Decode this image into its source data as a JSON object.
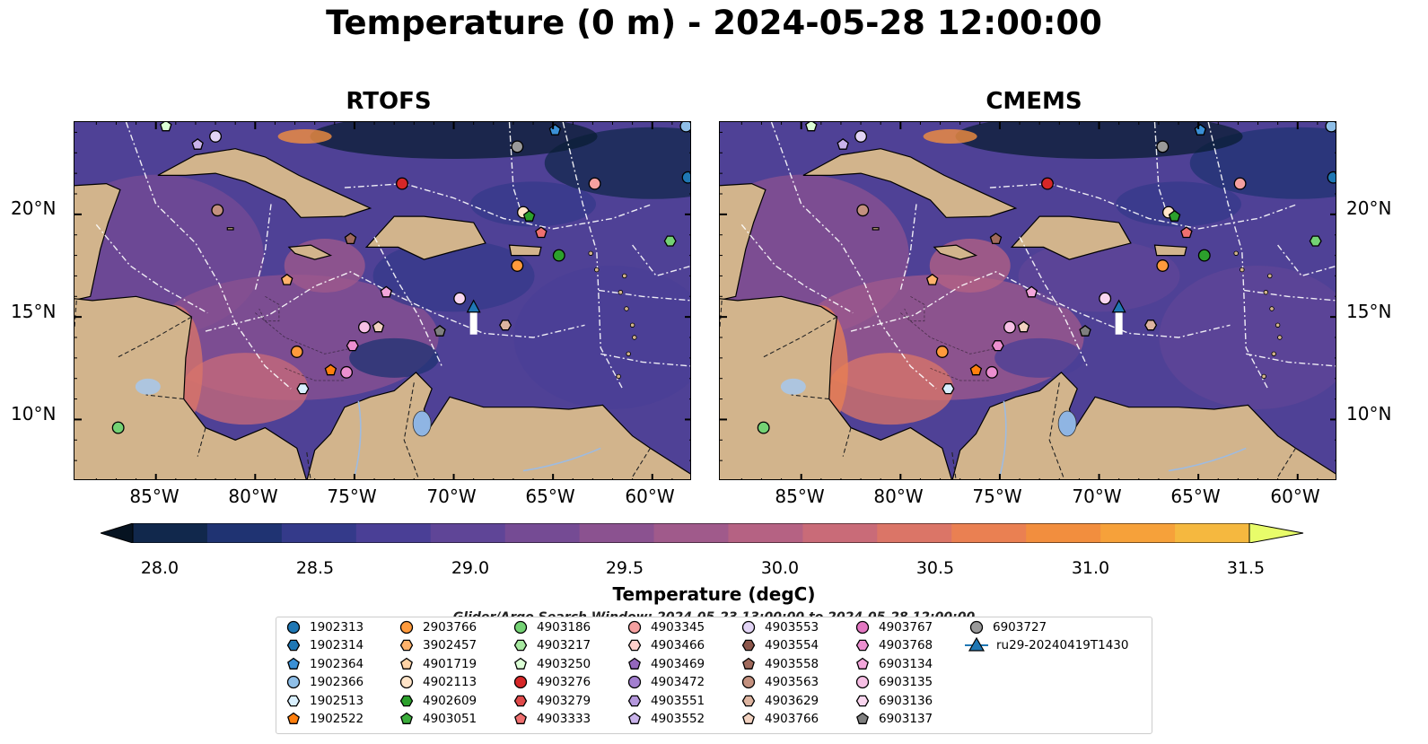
{
  "title": "Temperature (0 m) - 2024-05-28 12:00:00",
  "panels": [
    {
      "title": "RTOFS",
      "lat_labels": [
        "20°N",
        "15°N",
        "10°N"
      ],
      "lon_labels": [
        "85°W",
        "80°W",
        "75°W",
        "70°W",
        "65°W",
        "60°W"
      ]
    },
    {
      "title": "CMEMS",
      "lat_labels": [
        "20°N",
        "15°N",
        "10°N"
      ],
      "lon_labels": [
        "85°W",
        "80°W",
        "75°W",
        "70°W",
        "65°W",
        "60°W"
      ]
    }
  ],
  "colorbar": {
    "label": "Temperature (degC)",
    "ticks": [
      "28.0",
      "28.5",
      "29.0",
      "29.5",
      "30.0",
      "30.5",
      "31.0",
      "31.5"
    ],
    "min": 28.0,
    "max": 31.5,
    "colors": [
      "#0a1e33",
      "#11284c",
      "#1f3372",
      "#343a8a",
      "#4a3f96",
      "#5f4597",
      "#754b94",
      "#8b5290",
      "#a05a8b",
      "#b56283",
      "#c96b78",
      "#db7567",
      "#ea8052",
      "#f28e3e",
      "#f6a13a",
      "#f5b83f",
      "#f1cf4c"
    ],
    "under_color": "#061321",
    "over_color": "#e8fc6a"
  },
  "search_window": "Glider/Argo Search Window: 2024-05-23 13:00:00 to 2024-05-28 12:00:00",
  "legend": [
    {
      "label": "1902313",
      "shape": "circle",
      "color": "#1f77b4"
    },
    {
      "label": "1902314",
      "shape": "hexagon",
      "color": "#1f77b4"
    },
    {
      "label": "1902364",
      "shape": "pentagon",
      "color": "#3a90d6"
    },
    {
      "label": "1902366",
      "shape": "circle",
      "color": "#8fbfe8"
    },
    {
      "label": "1902513",
      "shape": "hexagon",
      "color": "#d9f0ff"
    },
    {
      "label": "1902522",
      "shape": "pentagon",
      "color": "#ff7f0e"
    },
    {
      "label": "2903766",
      "shape": "circle",
      "color": "#ff9a3c"
    },
    {
      "label": "3902457",
      "shape": "hexagon",
      "color": "#ffb26b"
    },
    {
      "label": "4901719",
      "shape": "pentagon",
      "color": "#ffd3a6"
    },
    {
      "label": "4902113",
      "shape": "circle",
      "color": "#ffe4c8"
    },
    {
      "label": "4902609",
      "shape": "hexagon",
      "color": "#2ca02c"
    },
    {
      "label": "4903051",
      "shape": "pentagon",
      "color": "#3cae3c"
    },
    {
      "label": "4903186",
      "shape": "circle",
      "color": "#74d274"
    },
    {
      "label": "4903217",
      "shape": "hexagon",
      "color": "#a6e8a0"
    },
    {
      "label": "4903250",
      "shape": "pentagon",
      "color": "#dcffd6"
    },
    {
      "label": "4903276",
      "shape": "circle",
      "color": "#d62728"
    },
    {
      "label": "4903279",
      "shape": "hexagon",
      "color": "#e04a4a"
    },
    {
      "label": "4903333",
      "shape": "pentagon",
      "color": "#f07070"
    },
    {
      "label": "4903345",
      "shape": "circle",
      "color": "#f5a0a0"
    },
    {
      "label": "4903466",
      "shape": "hexagon",
      "color": "#ffd0cc"
    },
    {
      "label": "4903469",
      "shape": "pentagon",
      "color": "#9467bd"
    },
    {
      "label": "4903472",
      "shape": "circle",
      "color": "#a37fd0"
    },
    {
      "label": "4903551",
      "shape": "hexagon",
      "color": "#b497dc"
    },
    {
      "label": "4903552",
      "shape": "pentagon",
      "color": "#c9b3ea"
    },
    {
      "label": "4903553",
      "shape": "circle",
      "color": "#e2d4f5"
    },
    {
      "label": "4903554",
      "shape": "hexagon",
      "color": "#8c564b"
    },
    {
      "label": "4903558",
      "shape": "pentagon",
      "color": "#a06a5c"
    },
    {
      "label": "4903563",
      "shape": "circle",
      "color": "#c4917f"
    },
    {
      "label": "4903629",
      "shape": "hexagon",
      "color": "#ddb4a0"
    },
    {
      "label": "4903766",
      "shape": "pentagon",
      "color": "#f2d2c0"
    },
    {
      "label": "4903767",
      "shape": "circle",
      "color": "#e377c2"
    },
    {
      "label": "4903768",
      "shape": "hexagon",
      "color": "#ec8fd0"
    },
    {
      "label": "6903134",
      "shape": "pentagon",
      "color": "#f3a6db"
    },
    {
      "label": "6903135",
      "shape": "circle",
      "color": "#f7bfe5"
    },
    {
      "label": "6903136",
      "shape": "hexagon",
      "color": "#fad6ef"
    },
    {
      "label": "6903137",
      "shape": "pentagon",
      "color": "#7f7f7f"
    },
    {
      "label": "6903727",
      "shape": "circle",
      "color": "#999999"
    },
    {
      "label": "ru29-20240419T1430",
      "shape": "triangle-line",
      "color": "#1f77b4"
    }
  ],
  "map_markers": [
    {
      "lon": -86.9,
      "lat": 9.6,
      "shape": "circle",
      "color": "#74d274"
    },
    {
      "lon": -81.9,
      "lat": 20.2,
      "shape": "circle",
      "color": "#c4917f"
    },
    {
      "lon": -78.4,
      "lat": 16.8,
      "shape": "pentagon",
      "color": "#ffb26b"
    },
    {
      "lon": -77.9,
      "lat": 13.3,
      "shape": "circle",
      "color": "#ff9a3c"
    },
    {
      "lon": -77.6,
      "lat": 11.5,
      "shape": "hexagon",
      "color": "#d9f0ff"
    },
    {
      "lon": -76.2,
      "lat": 12.4,
      "shape": "pentagon",
      "color": "#ff7f0e"
    },
    {
      "lon": -75.4,
      "lat": 12.3,
      "shape": "circle",
      "color": "#ec8fd0"
    },
    {
      "lon": -75.2,
      "lat": 18.8,
      "shape": "pentagon",
      "color": "#a06a5c"
    },
    {
      "lon": -75.1,
      "lat": 13.6,
      "shape": "hexagon",
      "color": "#ec8fd0"
    },
    {
      "lon": -74.5,
      "lat": 14.5,
      "shape": "circle",
      "color": "#f7bfe5"
    },
    {
      "lon": -73.8,
      "lat": 14.5,
      "shape": "pentagon",
      "color": "#f2d2c0"
    },
    {
      "lon": -73.4,
      "lat": 16.2,
      "shape": "pentagon",
      "color": "#f3a6db"
    },
    {
      "lon": -72.6,
      "lat": 21.5,
      "shape": "circle",
      "color": "#d62728"
    },
    {
      "lon": -70.7,
      "lat": 14.3,
      "shape": "pentagon",
      "color": "#7f7f7f"
    },
    {
      "lon": -69.7,
      "lat": 15.9,
      "shape": "circle",
      "color": "#fad6ef"
    },
    {
      "lon": -67.4,
      "lat": 14.6,
      "shape": "hexagon",
      "color": "#ddb4a0"
    },
    {
      "lon": -66.8,
      "lat": 17.5,
      "shape": "circle",
      "color": "#ff9a3c"
    },
    {
      "lon": -66.5,
      "lat": 20.1,
      "shape": "circle",
      "color": "#ffe4c8"
    },
    {
      "lon": -66.2,
      "lat": 19.9,
      "shape": "pentagon",
      "color": "#2ca02c"
    },
    {
      "lon": -65.6,
      "lat": 19.1,
      "shape": "pentagon",
      "color": "#f07070"
    },
    {
      "lon": -64.7,
      "lat": 18.0,
      "shape": "circle",
      "color": "#2ca02c"
    },
    {
      "lon": -62.9,
      "lat": 21.5,
      "shape": "circle",
      "color": "#f5a0a0"
    },
    {
      "lon": -59.1,
      "lat": 18.7,
      "shape": "hexagon",
      "color": "#74d274"
    },
    {
      "lon": -58.2,
      "lat": 21.8,
      "shape": "circle",
      "color": "#1f77b4"
    },
    {
      "lon": -66.8,
      "lat": 23.3,
      "shape": "circle",
      "color": "#999999"
    },
    {
      "lon": -84.5,
      "lat": 24.3,
      "shape": "pentagon",
      "color": "#dcffd6"
    },
    {
      "lon": -82.0,
      "lat": 23.8,
      "shape": "circle",
      "color": "#e2d4f5"
    },
    {
      "lon": -64.9,
      "lat": 24.1,
      "shape": "pentagon",
      "color": "#3a90d6"
    },
    {
      "lon": -58.3,
      "lat": 24.3,
      "shape": "circle",
      "color": "#8fbfe8"
    },
    {
      "lon": -82.9,
      "lat": 23.4,
      "shape": "pentagon",
      "color": "#c9b3ea"
    }
  ],
  "glider": {
    "lon": -69.0,
    "lat": 15.5,
    "color": "#1f77b4"
  }
}
